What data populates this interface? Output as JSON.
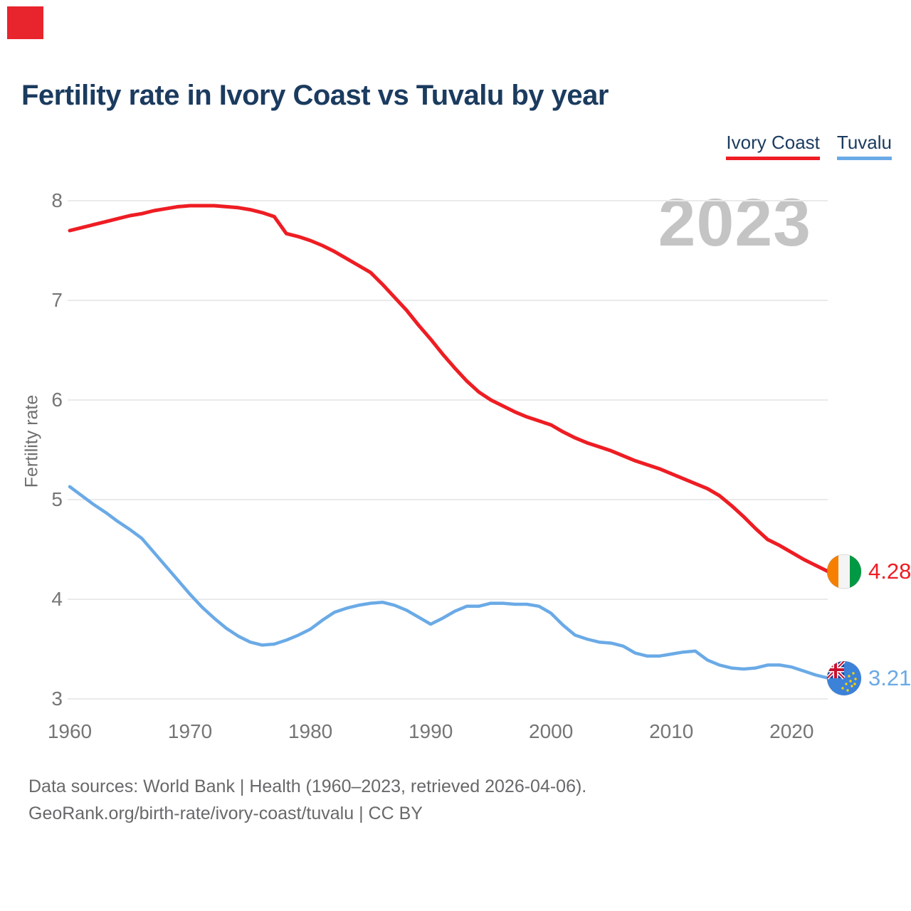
{
  "corner_marker": {
    "color": "#e8252d"
  },
  "header": {
    "title": "Fertility rate in Ivory Coast vs Tuvalu by year"
  },
  "legend": {
    "items": [
      {
        "label": "Ivory Coast",
        "color": "#ee1d23"
      },
      {
        "label": "Tuvalu",
        "color": "#6aaae6"
      }
    ]
  },
  "watermark": "2023",
  "chart_data": {
    "type": "line",
    "title": "Fertility rate in Ivory Coast vs Tuvalu by year",
    "xlabel": "",
    "ylabel": "Fertility rate",
    "x_start": 1960,
    "x_end": 2023,
    "xticks": [
      1960,
      1970,
      1980,
      1990,
      2000,
      2010,
      2020
    ],
    "yticks": [
      8,
      7,
      6,
      5,
      4,
      3
    ],
    "ylim": [
      2.85,
      8.15
    ],
    "grid": "horizontal",
    "legend_position": "top-right",
    "series": [
      {
        "name": "Ivory Coast",
        "color": "#ee1d23",
        "end_label": "4.28",
        "flag": "ivory-coast",
        "values": [
          7.7,
          7.73,
          7.76,
          7.79,
          7.82,
          7.85,
          7.87,
          7.9,
          7.92,
          7.94,
          7.95,
          7.95,
          7.95,
          7.94,
          7.93,
          7.91,
          7.88,
          7.84,
          7.67,
          7.64,
          7.6,
          7.55,
          7.49,
          7.42,
          7.35,
          7.28,
          7.16,
          7.03,
          6.9,
          6.75,
          6.61,
          6.46,
          6.32,
          6.19,
          6.08,
          6.0,
          5.94,
          5.88,
          5.83,
          5.79,
          5.75,
          5.68,
          5.62,
          5.57,
          5.53,
          5.49,
          5.44,
          5.39,
          5.35,
          5.31,
          5.26,
          5.21,
          5.16,
          5.11,
          5.04,
          4.94,
          4.83,
          4.71,
          4.6,
          4.54,
          4.47,
          4.4,
          4.34,
          4.28
        ]
      },
      {
        "name": "Tuvalu",
        "color": "#6aaae6",
        "end_label": "3.21",
        "flag": "tuvalu",
        "values": [
          5.13,
          5.04,
          4.95,
          4.87,
          4.78,
          4.7,
          4.61,
          4.47,
          4.33,
          4.19,
          4.05,
          3.92,
          3.81,
          3.71,
          3.63,
          3.57,
          3.54,
          3.55,
          3.59,
          3.64,
          3.7,
          3.79,
          3.87,
          3.91,
          3.94,
          3.96,
          3.97,
          3.94,
          3.89,
          3.82,
          3.75,
          3.81,
          3.88,
          3.93,
          3.93,
          3.96,
          3.96,
          3.95,
          3.95,
          3.93,
          3.86,
          3.74,
          3.64,
          3.6,
          3.57,
          3.56,
          3.53,
          3.46,
          3.43,
          3.43,
          3.45,
          3.47,
          3.48,
          3.39,
          3.34,
          3.31,
          3.3,
          3.31,
          3.34,
          3.34,
          3.32,
          3.28,
          3.24,
          3.21
        ]
      }
    ]
  },
  "footer": {
    "line1": "Data sources: World Bank | Health (1960–2023, retrieved 2026-04-06).",
    "line2": "GeoRank.org/birth-rate/ivory-coast/tuvalu | CC BY"
  }
}
